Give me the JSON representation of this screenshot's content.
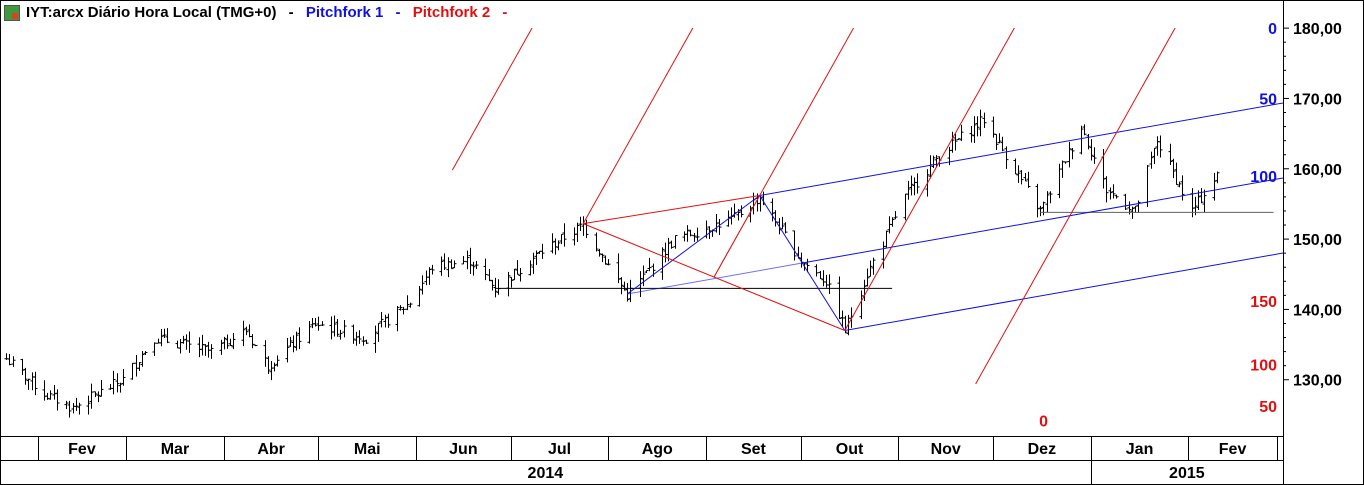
{
  "header": {
    "symbol_title": "IYT:arcx Diário Hora Local (TMG+0)",
    "pitchfork1_label": "Pitchfork 1",
    "pitchfork2_label": "Pitchfork 2",
    "separator": "-"
  },
  "colors": {
    "pitchfork1": "#1010e0",
    "pitchfork2": "#e01010",
    "price": "#000000",
    "axis": "#000000"
  },
  "chart_data": {
    "type": "ohlc",
    "title": "IYT:arcx Diário Hora Local (TMG+0)",
    "ylim": [
      122,
      184
    ],
    "y_ticks": [
      130,
      140,
      150,
      160,
      170,
      180
    ],
    "y_tick_labels": [
      "130,00",
      "140,00",
      "150,00",
      "160,00",
      "170,00",
      "180,00"
    ],
    "x_months": [
      {
        "label": "Fev",
        "year": 2014
      },
      {
        "label": "Mar",
        "year": 2014
      },
      {
        "label": "Abr",
        "year": 2014
      },
      {
        "label": "Mai",
        "year": 2014
      },
      {
        "label": "Jun",
        "year": 2014
      },
      {
        "label": "Jul",
        "year": 2014
      },
      {
        "label": "Ago",
        "year": 2014
      },
      {
        "label": "Set",
        "year": 2014
      },
      {
        "label": "Out",
        "year": 2014
      },
      {
        "label": "Nov",
        "year": 2014
      },
      {
        "label": "Dez",
        "year": 2014
      },
      {
        "label": "Jan",
        "year": 2015
      },
      {
        "label": "Fev",
        "year": 2015
      }
    ],
    "x_years": [
      "2014",
      "2015"
    ],
    "price_anchors": [
      {
        "date": "2014-01-22",
        "close": 133
      },
      {
        "date": "2014-02-03",
        "close": 128
      },
      {
        "date": "2014-02-12",
        "close": 126
      },
      {
        "date": "2014-02-28",
        "close": 130
      },
      {
        "date": "2014-03-10",
        "close": 136
      },
      {
        "date": "2014-03-28",
        "close": 134
      },
      {
        "date": "2014-04-08",
        "close": 137
      },
      {
        "date": "2014-04-15",
        "close": 132
      },
      {
        "date": "2014-04-30",
        "close": 138
      },
      {
        "date": "2014-05-16",
        "close": 136
      },
      {
        "date": "2014-05-30",
        "close": 141
      },
      {
        "date": "2014-06-06",
        "close": 146
      },
      {
        "date": "2014-06-18",
        "close": 147
      },
      {
        "date": "2014-06-26",
        "close": 143
      },
      {
        "date": "2014-07-10",
        "close": 148
      },
      {
        "date": "2014-07-24",
        "close": 152
      },
      {
        "date": "2014-08-07",
        "close": 142
      },
      {
        "date": "2014-08-22",
        "close": 150
      },
      {
        "date": "2014-09-10",
        "close": 153
      },
      {
        "date": "2014-09-18",
        "close": 156
      },
      {
        "date": "2014-10-01",
        "close": 147
      },
      {
        "date": "2014-10-09",
        "close": 144
      },
      {
        "date": "2014-10-15",
        "close": 137
      },
      {
        "date": "2014-10-22",
        "close": 145
      },
      {
        "date": "2014-11-03",
        "close": 156
      },
      {
        "date": "2014-11-14",
        "close": 162
      },
      {
        "date": "2014-11-28",
        "close": 167
      },
      {
        "date": "2014-12-05",
        "close": 162
      },
      {
        "date": "2014-12-16",
        "close": 154
      },
      {
        "date": "2014-12-29",
        "close": 166
      },
      {
        "date": "2015-01-06",
        "close": 157
      },
      {
        "date": "2015-01-15",
        "close": 154
      },
      {
        "date": "2015-01-22",
        "close": 164
      },
      {
        "date": "2015-02-02",
        "close": 154
      },
      {
        "date": "2015-02-10",
        "close": 159
      }
    ],
    "support_lines": [
      {
        "from": "2014-06-26",
        "to": "2014-10-30",
        "price": 143,
        "color": "#000000"
      },
      {
        "from": "2014-12-16",
        "to": "2015-02-28",
        "price": 153.8,
        "color": "#606060"
      }
    ],
    "pitchfork1": {
      "pivot_a": {
        "date": "2014-08-07",
        "price": 142.2
      },
      "pivot_b": {
        "date": "2014-09-18",
        "price": 156.2
      },
      "pivot_c": {
        "date": "2014-10-15",
        "price": 137.0
      },
      "level_labels": [
        "0",
        "50",
        "100"
      ],
      "label_prices": [
        180,
        170,
        159
      ]
    },
    "pitchfork2": {
      "pivot_a": {
        "date": "2014-09-18",
        "price": 156.2
      },
      "pivot_b": {
        "date": "2014-07-24",
        "price": 152.2
      },
      "pivot_c": {
        "date": "2014-10-15",
        "price": 137.0
      },
      "level_labels": [
        "150",
        "100",
        "50",
        "0"
      ],
      "label_prices": [
        141.2,
        132.2,
        126.3,
        124.2
      ]
    }
  }
}
